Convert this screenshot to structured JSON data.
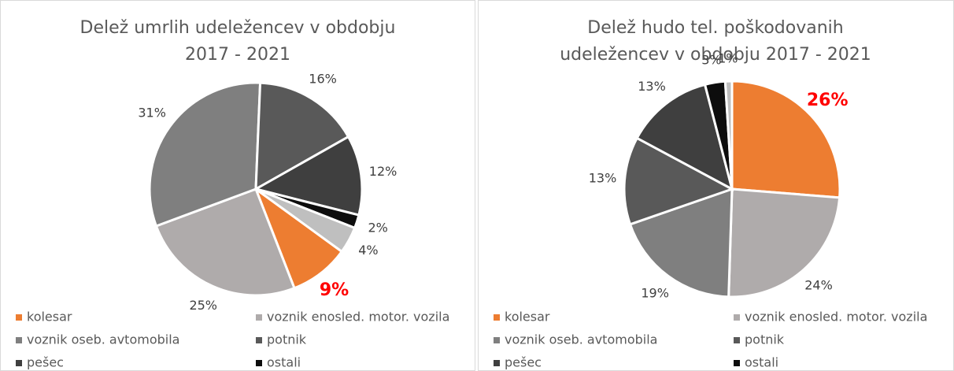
{
  "chart_data": [
    {
      "type": "pie",
      "title": [
        "Delež umrlih udeležencev v obdobju",
        "2017 - 2021"
      ],
      "categories": [
        "kolesar",
        "voznik enosled. motor. vozila",
        "voznik oseb.  avtomobila",
        "potnik",
        "pešec",
        "ostali",
        null
      ],
      "values": [
        9,
        25,
        31,
        16,
        12,
        2,
        4
      ],
      "value_labels": [
        "9%",
        "25%",
        "31%",
        "16%",
        "12%",
        "2%",
        "4%"
      ],
      "colors": [
        "#ed7d31",
        "#afabab",
        "#7f7f7f",
        "#595959",
        "#3f3f3f",
        "#0d0d0d",
        "#bfbfbf"
      ],
      "value_label_colors": [
        "#ff0000",
        "#404040",
        "#404040",
        "#404040",
        "#404040",
        "#404040",
        "#404040"
      ],
      "start_angle": 126
    },
    {
      "type": "pie",
      "title": [
        "Delež hudo tel. poškodovanih",
        "udeležencev v obdobju 2017 - 2021"
      ],
      "categories": [
        "kolesar",
        "voznik enosled. motor. vozila",
        "voznik oseb.  avtomobila",
        "potnik",
        "pešec",
        "ostali",
        null
      ],
      "values": [
        26,
        24,
        19,
        13,
        13,
        3,
        1
      ],
      "value_labels": [
        "26%",
        "24%",
        "19%",
        "13%",
        "13%",
        "3%",
        "1%"
      ],
      "colors": [
        "#ed7d31",
        "#afabab",
        "#7f7f7f",
        "#595959",
        "#3f3f3f",
        "#0d0d0d",
        "#bfbfbf"
      ],
      "value_label_colors": [
        "#ff0000",
        "#404040",
        "#404040",
        "#404040",
        "#404040",
        "#404040",
        "#404040"
      ],
      "start_angle": 0
    }
  ]
}
